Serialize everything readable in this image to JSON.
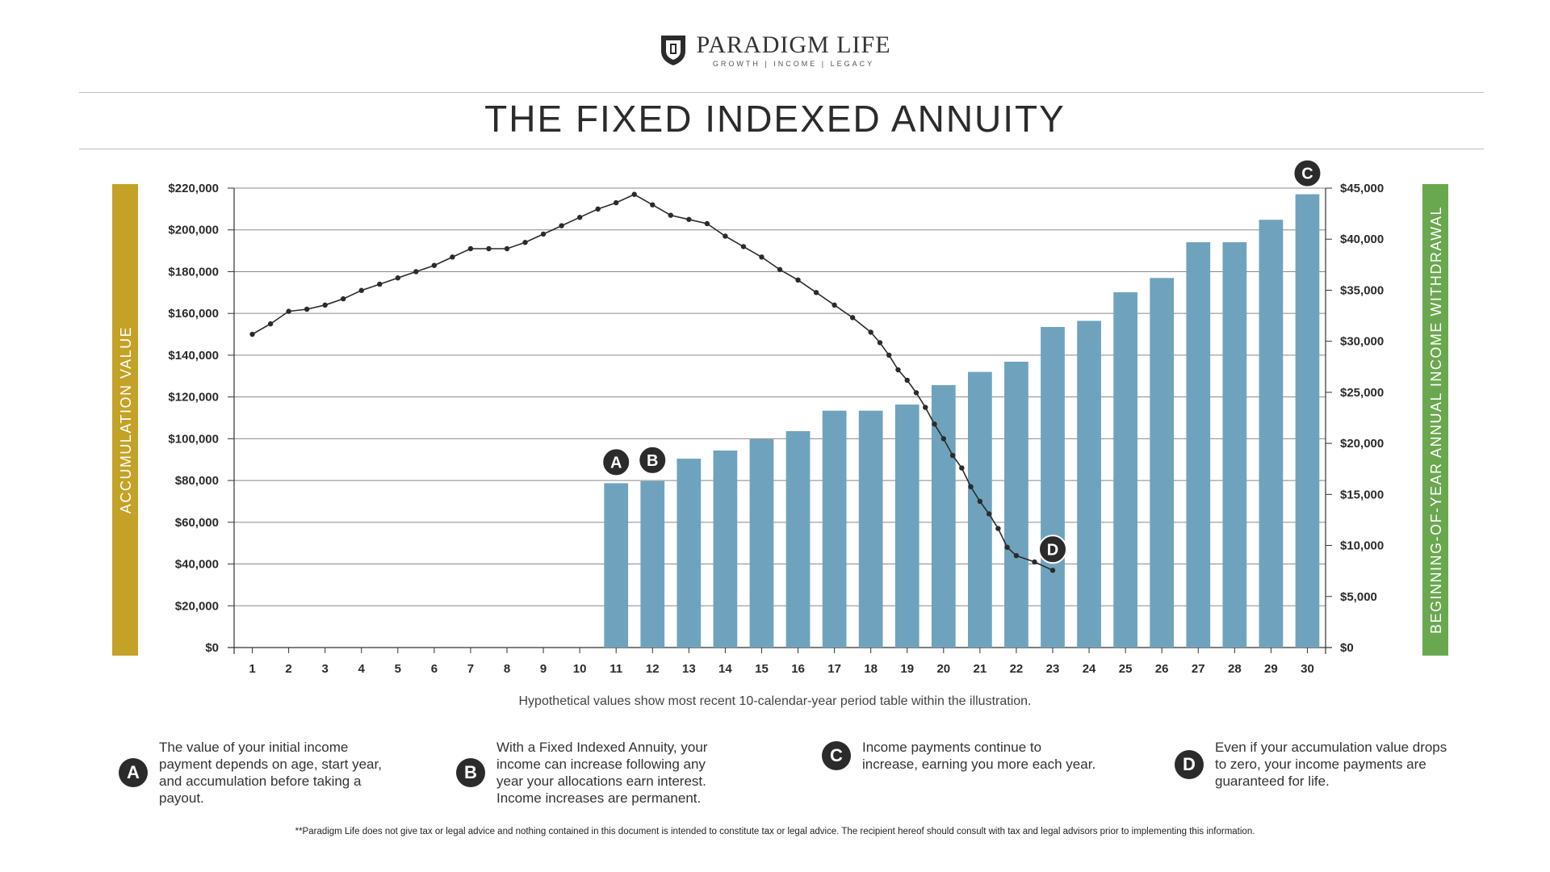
{
  "brand": {
    "name": "PARADIGM LIFE",
    "tagline": "GROWTH  |  INCOME  |  LEGACY",
    "shield_icon": "shield-logo-icon"
  },
  "title": "THE FIXED INDEXED ANNUITY",
  "note": "Hypothetical values show most recent 10-calendar-year period table within the illustration.",
  "explanations": [
    {
      "badge": "A",
      "text": "The value of your initial income payment depends on age, start year, and accumulation before taking a payout."
    },
    {
      "badge": "B",
      "text": "With a Fixed Indexed Annuity, your income can increase following any year your allocations earn interest. Income increases are permanent."
    },
    {
      "badge": "C",
      "text": "Income payments continue to increase, earning you more each year."
    },
    {
      "badge": "D",
      "text": "Even if your accumulation value drops to zero, your income payments are guaranteed for life."
    }
  ],
  "disclaimer": "**Paradigm Life does not give tax or legal advice and nothing contained in this document is intended to constitute tax or legal advice. The recipient hereof should consult with tax and legal advisors prior to implementing this information.",
  "colors": {
    "bar": "#6fa3bd",
    "left_axis_band": "#c4a227",
    "right_axis_band": "#6aa84f",
    "line": "#2b2b2b",
    "grid": "#8a8a8a",
    "badge": "#2b2b2b"
  },
  "chart_data": {
    "type": "bar+line",
    "categories": [
      "1",
      "2",
      "3",
      "4",
      "5",
      "6",
      "7",
      "8",
      "9",
      "10",
      "11",
      "12",
      "13",
      "14",
      "15",
      "16",
      "17",
      "18",
      "19",
      "20",
      "21",
      "22",
      "23",
      "24",
      "25",
      "26",
      "27",
      "28",
      "29",
      "30"
    ],
    "left_axis": {
      "label": "ACCUMULATION VALUE",
      "ticks": [
        "$0",
        "$20,000",
        "$40,000",
        "$60,000",
        "$80,000",
        "$100,000",
        "$120,000",
        "$140,000",
        "$160,000",
        "$180,000",
        "$200,000",
        "$220,000"
      ],
      "ylim": [
        0,
        220000
      ]
    },
    "right_axis": {
      "label": "BEGINNING-OF-YEAR ANNUAL INCOME WITHDRAWAL",
      "ticks": [
        "$0",
        "$5,000",
        "$10,000",
        "$15,000",
        "$20,000",
        "$25,000",
        "$30,000",
        "$35,000",
        "$40,000",
        "$45,000"
      ],
      "ylim": [
        0,
        45000
      ]
    },
    "bars": {
      "axis": "right",
      "values": [
        0,
        0,
        0,
        0,
        0,
        0,
        0,
        0,
        0,
        0,
        16100,
        16300,
        18500,
        19300,
        20400,
        21200,
        23200,
        23200,
        23800,
        25700,
        27000,
        28000,
        31400,
        32000,
        34800,
        36200,
        39700,
        39700,
        41900,
        44400
      ]
    },
    "line": {
      "axis": "left",
      "x": [
        1,
        1.5,
        2,
        2.5,
        3,
        3.5,
        4,
        4.5,
        5,
        5.5,
        6,
        6.5,
        7,
        7.5,
        8,
        8.5,
        9,
        9.5,
        10,
        10.5,
        11,
        11.5,
        12,
        12.5,
        13,
        13.5,
        14,
        14.5,
        15,
        15.5,
        16,
        16.5,
        17,
        17.5,
        18,
        18.25,
        18.5,
        18.75,
        19,
        19.25,
        19.5,
        19.75,
        20,
        20.25,
        20.5,
        20.75,
        21,
        21.25,
        21.5,
        21.75,
        22,
        22.5,
        23
      ],
      "y": [
        150000,
        155000,
        161000,
        162000,
        164000,
        167000,
        171000,
        174000,
        177000,
        180000,
        183000,
        187000,
        191000,
        191000,
        191000,
        194000,
        198000,
        202000,
        206000,
        210000,
        213000,
        217000,
        212000,
        207000,
        205000,
        203000,
        197000,
        192000,
        187000,
        181000,
        176000,
        170000,
        164000,
        158000,
        151000,
        146000,
        140000,
        133000,
        128000,
        122000,
        115000,
        107000,
        100000,
        92000,
        86000,
        77000,
        70000,
        64000,
        57000,
        48000,
        44000,
        41000,
        37000
      ]
    },
    "markers": [
      {
        "label": "A",
        "category": "11",
        "axis": "right",
        "value": 16100
      },
      {
        "label": "B",
        "category": "12",
        "axis": "right",
        "value": 16300
      },
      {
        "label": "C",
        "category": "30",
        "axis": "right",
        "value": 44400
      },
      {
        "label": "D",
        "category": "23",
        "axis": "left",
        "value": 37000
      }
    ],
    "grid": true
  }
}
